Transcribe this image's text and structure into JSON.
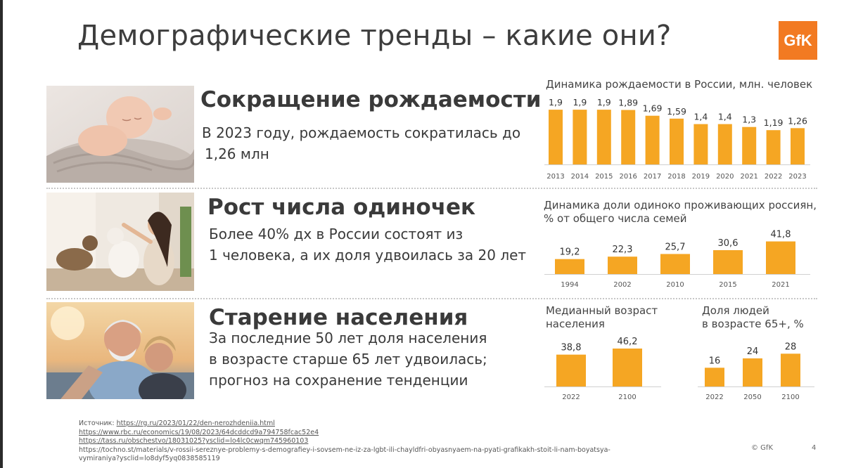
{
  "title": "Демографические тренды – какие они?",
  "logo_text": "GfK",
  "accent_color": "#f5a623",
  "sections": [
    {
      "heading": "Сокращение рождаемости",
      "body_line1": "В 2023 году, рождаемость сократилась до",
      "body_line2": "1,26 млн",
      "photo": "baby-sleeping-photo"
    },
    {
      "heading": "Рост числа одиночек",
      "body_line1": "Более 40% дх в России состоят из",
      "body_line2": "1 человека, а их доля удвоилась за 20 лет",
      "photo": "woman-with-cats-photo"
    },
    {
      "heading": "Старение населения",
      "body_line1": "За последние 50 лет доля населения",
      "body_line2": "в возрасте старше 65 лет удвоилась;",
      "body_line3": "прогноз на сохранение тенденции",
      "photo": "elderly-couple-photo"
    }
  ],
  "chart_data": [
    {
      "type": "bar",
      "title": "Динамика рождаемости в России, млн. человек",
      "categories": [
        "2013",
        "2014",
        "2015",
        "2016",
        "2017",
        "2018",
        "2019",
        "2020",
        "2021",
        "2022",
        "2023"
      ],
      "values": [
        1.9,
        1.9,
        1.9,
        1.89,
        1.69,
        1.59,
        1.4,
        1.4,
        1.3,
        1.19,
        1.26
      ],
      "labels": [
        "1,9",
        "1,9",
        "1,9",
        "1,89",
        "1,69",
        "1,59",
        "1,4",
        "1,4",
        "1,3",
        "1,19",
        "1,26"
      ],
      "color": "#f5a623"
    },
    {
      "type": "bar",
      "title_line1": "Динамика доли одиноко проживающих россиян,",
      "title_line2": "% от общего числа семей",
      "categories": [
        "1994",
        "2002",
        "2010",
        "2015",
        "2021"
      ],
      "values": [
        19.2,
        22.3,
        25.7,
        30.6,
        41.8
      ],
      "labels": [
        "19,2",
        "22,3",
        "25,7",
        "30,6",
        "41,8"
      ],
      "color": "#f5a623"
    },
    {
      "type": "bar",
      "title_line1": "Медианный возраст",
      "title_line2": "населения",
      "categories": [
        "2022",
        "2100"
      ],
      "values": [
        38.8,
        46.2
      ],
      "labels": [
        "38,8",
        "46,2"
      ],
      "color": "#f5a623"
    },
    {
      "type": "bar",
      "title_line1": "Доля людей",
      "title_line2": "в возрасте 65+, %",
      "categories": [
        "2022",
        "2050",
        "2100"
      ],
      "values": [
        16,
        24,
        28
      ],
      "labels": [
        "16",
        "24",
        "28"
      ],
      "color": "#f5a623"
    }
  ],
  "sources": {
    "label": "Источник: ",
    "links": [
      "https://rg.ru/2023/01/22/den-nerozhdeniia.html",
      "https://www.rbc.ru/economics/19/08/2023/64dcddcd9a794758fcac52e4",
      "https://tass.ru/obschestvo/18031025?ysclid=lo4lc0cwqm745960103"
    ],
    "plain_line1": "https://tochno.st/materials/v-rossii-sereznye-problemy-s-demografiey-i-sovsem-ne-iz-za-lgbt-ili-chayldfri-obyasnyaem-na-pyati-grafikakh-stoit-li-nam-boyatsya-",
    "plain_line2": "vymiraniya?ysclid=lo8dyf5yq0838585119"
  },
  "footer": {
    "copyright": "© GfK",
    "page": "4"
  }
}
